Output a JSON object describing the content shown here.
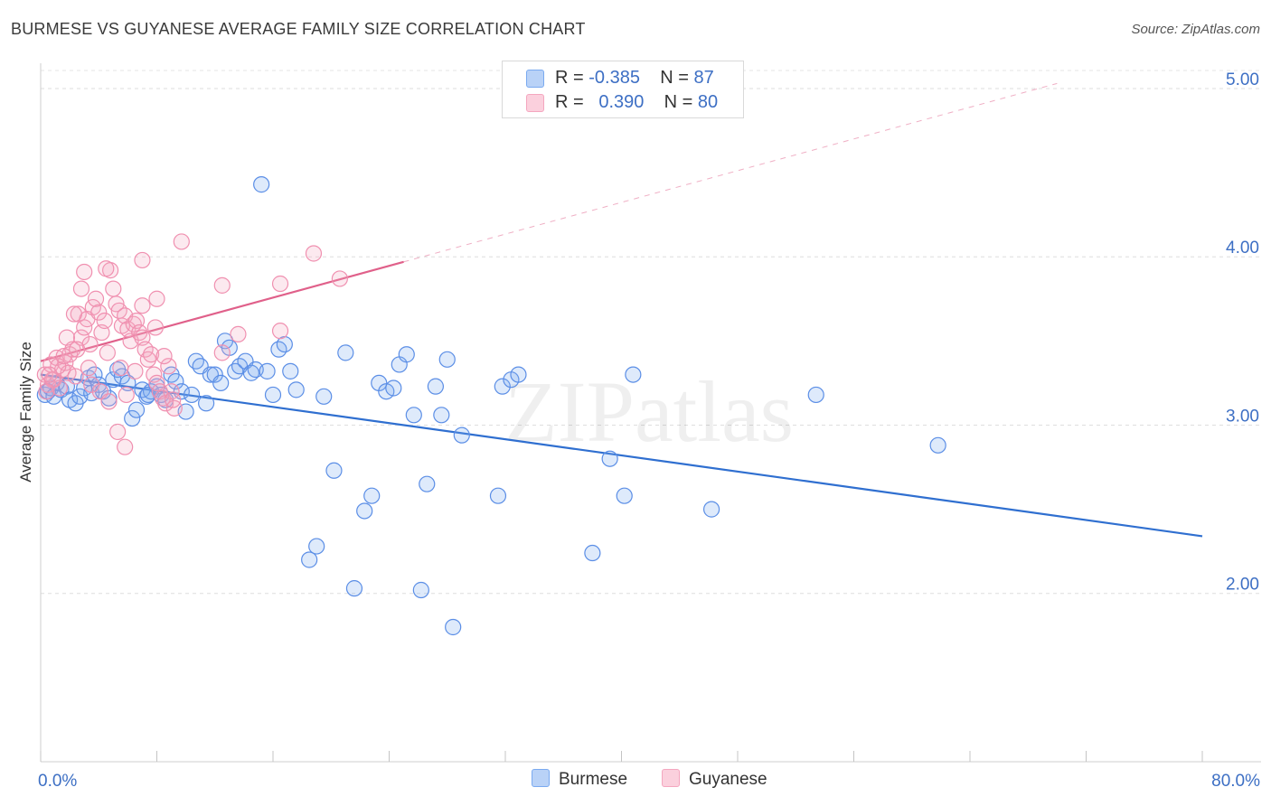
{
  "header": {
    "title": "BURMESE VS GUYANESE AVERAGE FAMILY SIZE CORRELATION CHART",
    "source": "Source: ZipAtlas.com"
  },
  "watermark": "ZIPatlas",
  "legend": {
    "rows": [
      {
        "series": "Burmese",
        "r_label": "R = ",
        "r_value": "-0.385",
        "n_label": "N = ",
        "n_value": "87",
        "color": "#7aaaf0"
      },
      {
        "series": "Guyanese",
        "r_label": "R = ",
        "r_value": "0.390",
        "n_label": "N = ",
        "n_value": "80",
        "color": "#f4a6bf"
      }
    ]
  },
  "bottom_legend": [
    {
      "label": "Burmese",
      "color": "#7aaaf0"
    },
    {
      "label": "Guyanese",
      "color": "#f4a6bf"
    }
  ],
  "chart_data": {
    "type": "scatter",
    "title": "BURMESE VS GUYANESE AVERAGE FAMILY SIZE CORRELATION CHART",
    "xlabel": "",
    "ylabel": "Average Family Size",
    "xlim": [
      0,
      80
    ],
    "ylim": [
      1.0,
      5.15
    ],
    "x_tick_labels": [
      "0.0%",
      "80.0%"
    ],
    "y_ticks": [
      2.0,
      3.0,
      4.0,
      5.0
    ],
    "y_tick_labels": [
      "2.00",
      "3.00",
      "4.00",
      "5.00"
    ],
    "grid": true,
    "legend_position": "top-center",
    "series": [
      {
        "name": "Burmese",
        "color": "#5b8ee6",
        "trend": {
          "x": [
            0,
            80
          ],
          "y": [
            3.3,
            2.34
          ],
          "color": "#2f6fd0"
        },
        "points": [
          [
            0.3,
            3.18
          ],
          [
            0.5,
            3.2
          ],
          [
            0.7,
            3.22
          ],
          [
            0.9,
            3.17
          ],
          [
            1.1,
            3.25
          ],
          [
            1.4,
            3.21
          ],
          [
            1.8,
            3.23
          ],
          [
            2.0,
            3.15
          ],
          [
            2.4,
            3.13
          ],
          [
            2.7,
            3.17
          ],
          [
            3.0,
            3.22
          ],
          [
            3.3,
            3.28
          ],
          [
            3.5,
            3.19
          ],
          [
            3.7,
            3.3
          ],
          [
            4.0,
            3.24
          ],
          [
            4.3,
            3.2
          ],
          [
            4.7,
            3.16
          ],
          [
            5.0,
            3.27
          ],
          [
            5.3,
            3.33
          ],
          [
            5.6,
            3.29
          ],
          [
            6.0,
            3.25
          ],
          [
            6.3,
            3.04
          ],
          [
            6.6,
            3.09
          ],
          [
            7.0,
            3.21
          ],
          [
            7.3,
            3.17
          ],
          [
            7.6,
            3.2
          ],
          [
            8.0,
            3.23
          ],
          [
            8.3,
            3.18
          ],
          [
            8.6,
            3.15
          ],
          [
            9.0,
            3.3
          ],
          [
            9.3,
            3.26
          ],
          [
            9.7,
            3.2
          ],
          [
            10.0,
            3.08
          ],
          [
            10.4,
            3.18
          ],
          [
            10.7,
            3.38
          ],
          [
            11.0,
            3.35
          ],
          [
            11.4,
            3.13
          ],
          [
            11.7,
            3.3
          ],
          [
            12.0,
            3.3
          ],
          [
            12.4,
            3.25
          ],
          [
            12.7,
            3.5
          ],
          [
            13.0,
            3.46
          ],
          [
            13.4,
            3.32
          ],
          [
            13.7,
            3.35
          ],
          [
            14.1,
            3.38
          ],
          [
            14.5,
            3.31
          ],
          [
            14.8,
            3.33
          ],
          [
            15.2,
            4.43
          ],
          [
            15.6,
            3.32
          ],
          [
            16.0,
            3.18
          ],
          [
            16.4,
            3.45
          ],
          [
            16.8,
            3.48
          ],
          [
            17.2,
            3.32
          ],
          [
            17.6,
            3.21
          ],
          [
            18.5,
            2.2
          ],
          [
            19.0,
            2.28
          ],
          [
            19.5,
            3.17
          ],
          [
            20.2,
            2.73
          ],
          [
            21.0,
            3.43
          ],
          [
            21.6,
            2.03
          ],
          [
            22.3,
            2.49
          ],
          [
            22.8,
            2.58
          ],
          [
            23.3,
            3.25
          ],
          [
            23.8,
            3.2
          ],
          [
            24.3,
            3.22
          ],
          [
            24.7,
            3.36
          ],
          [
            25.2,
            3.42
          ],
          [
            25.7,
            3.06
          ],
          [
            26.2,
            2.02
          ],
          [
            26.6,
            2.65
          ],
          [
            27.2,
            3.23
          ],
          [
            27.6,
            3.06
          ],
          [
            28.0,
            3.39
          ],
          [
            28.4,
            1.8
          ],
          [
            29.0,
            2.94
          ],
          [
            31.5,
            2.58
          ],
          [
            31.8,
            3.23
          ],
          [
            32.4,
            3.27
          ],
          [
            32.9,
            3.3
          ],
          [
            38.0,
            2.24
          ],
          [
            39.2,
            2.8
          ],
          [
            40.2,
            2.58
          ],
          [
            40.8,
            3.3
          ],
          [
            46.2,
            2.5
          ],
          [
            53.4,
            3.18
          ],
          [
            61.8,
            2.88
          ],
          [
            7.4,
            3.18
          ]
        ]
      },
      {
        "name": "Guyanese",
        "color": "#f090b0",
        "trend": {
          "x": [
            0,
            25
          ],
          "y": [
            3.38,
            3.97
          ],
          "color": "#e0608a",
          "extended_to": [
            70,
            5.03
          ]
        },
        "points": [
          [
            0.3,
            3.3
          ],
          [
            0.5,
            3.24
          ],
          [
            0.7,
            3.36
          ],
          [
            0.9,
            3.27
          ],
          [
            1.1,
            3.4
          ],
          [
            1.3,
            3.22
          ],
          [
            1.5,
            3.33
          ],
          [
            1.7,
            3.37
          ],
          [
            1.9,
            3.31
          ],
          [
            2.0,
            3.42
          ],
          [
            2.2,
            3.45
          ],
          [
            2.4,
            3.29
          ],
          [
            2.6,
            3.66
          ],
          [
            2.8,
            3.52
          ],
          [
            3.0,
            3.58
          ],
          [
            3.2,
            3.63
          ],
          [
            3.4,
            3.48
          ],
          [
            3.6,
            3.7
          ],
          [
            3.8,
            3.75
          ],
          [
            4.0,
            3.67
          ],
          [
            4.2,
            3.55
          ],
          [
            4.4,
            3.62
          ],
          [
            4.6,
            3.43
          ],
          [
            4.8,
            3.92
          ],
          [
            5.0,
            3.81
          ],
          [
            5.2,
            3.72
          ],
          [
            5.4,
            3.68
          ],
          [
            5.6,
            3.59
          ],
          [
            5.8,
            3.65
          ],
          [
            6.0,
            3.57
          ],
          [
            6.2,
            3.5
          ],
          [
            6.4,
            3.6
          ],
          [
            6.6,
            3.62
          ],
          [
            6.8,
            3.55
          ],
          [
            7.0,
            3.52
          ],
          [
            7.2,
            3.45
          ],
          [
            7.4,
            3.39
          ],
          [
            7.6,
            3.42
          ],
          [
            7.8,
            3.3
          ],
          [
            8.0,
            3.25
          ],
          [
            8.2,
            3.2
          ],
          [
            8.4,
            3.16
          ],
          [
            8.6,
            3.13
          ],
          [
            8.8,
            3.35
          ],
          [
            9.0,
            3.2
          ],
          [
            9.2,
            3.1
          ],
          [
            4.5,
            3.93
          ],
          [
            3.0,
            3.91
          ],
          [
            7.0,
            3.98
          ],
          [
            9.7,
            4.09
          ],
          [
            12.5,
            3.83
          ],
          [
            16.5,
            3.84
          ],
          [
            18.8,
            4.02
          ],
          [
            20.6,
            3.87
          ],
          [
            16.5,
            3.56
          ],
          [
            13.6,
            3.54
          ],
          [
            12.5,
            3.43
          ],
          [
            8.0,
            3.75
          ],
          [
            7.0,
            3.71
          ],
          [
            5.5,
            3.34
          ],
          [
            5.3,
            2.96
          ],
          [
            5.8,
            2.87
          ],
          [
            2.8,
            3.81
          ],
          [
            2.3,
            3.66
          ],
          [
            1.8,
            3.52
          ],
          [
            1.2,
            3.35
          ],
          [
            0.8,
            3.27
          ],
          [
            0.4,
            3.2
          ],
          [
            0.6,
            3.3
          ],
          [
            1.6,
            3.41
          ],
          [
            2.5,
            3.45
          ],
          [
            3.5,
            3.24
          ],
          [
            4.1,
            3.2
          ],
          [
            4.7,
            3.14
          ],
          [
            5.9,
            3.18
          ],
          [
            6.5,
            3.32
          ],
          [
            7.9,
            3.58
          ],
          [
            8.5,
            3.41
          ],
          [
            9.1,
            3.15
          ],
          [
            3.3,
            3.34
          ]
        ]
      }
    ]
  }
}
